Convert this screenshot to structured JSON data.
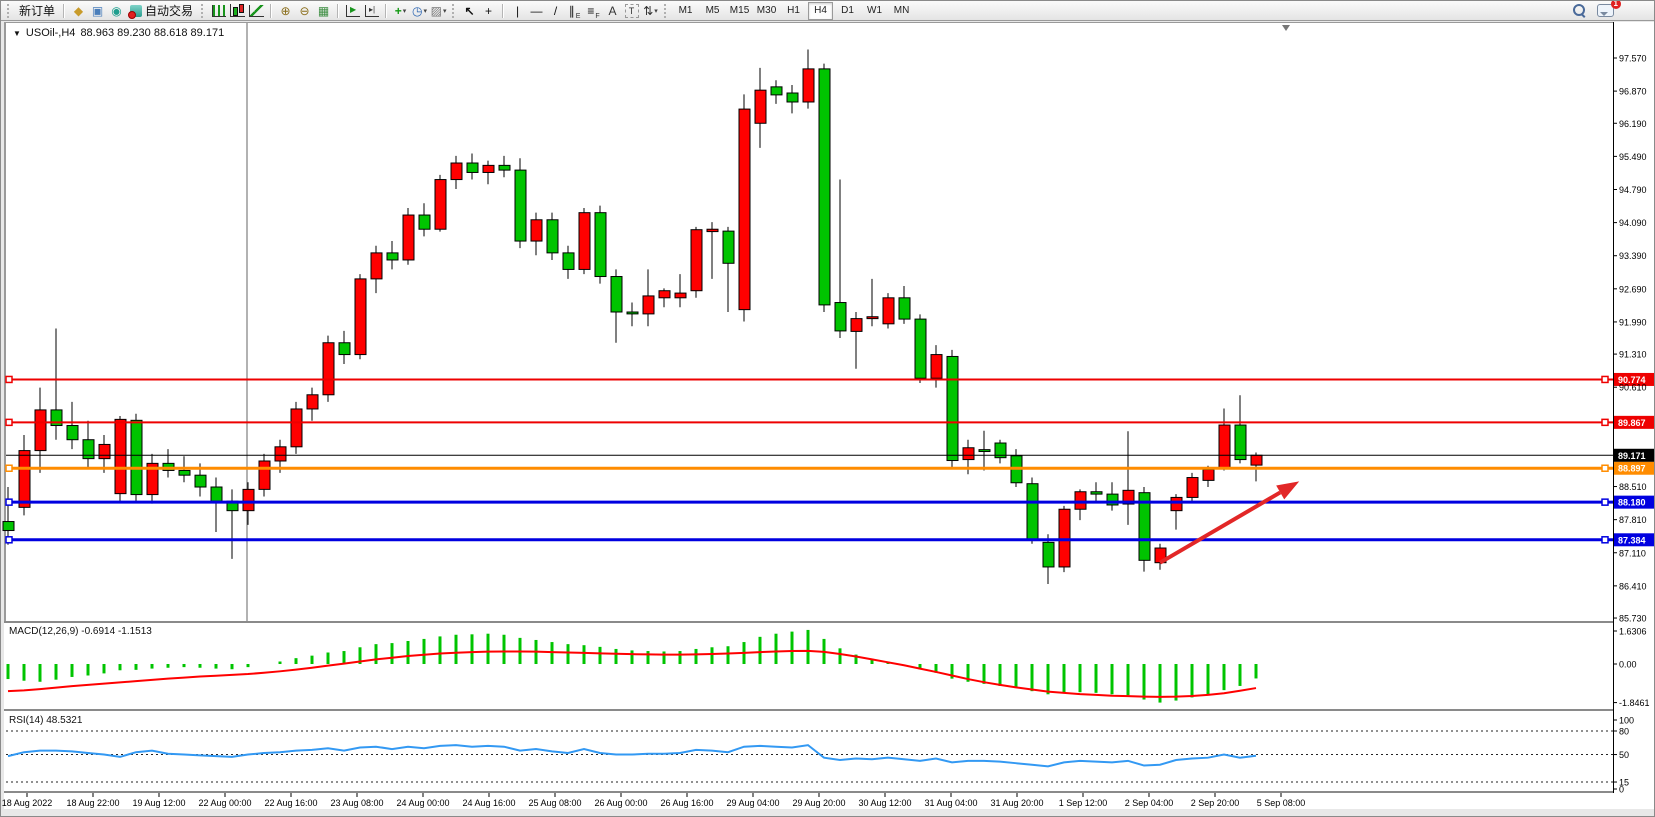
{
  "toolbar": {
    "new_order_label": "新订单",
    "autotrading_label": "自动交易",
    "timeframes": [
      "M1",
      "M5",
      "M15",
      "M30",
      "H1",
      "H4",
      "D1",
      "W1",
      "MN"
    ],
    "active_timeframe": "H4",
    "notification_count": "1",
    "tools": [
      {
        "kind": "grip"
      },
      {
        "kind": "text",
        "name": "new-order-button"
      },
      {
        "kind": "sep"
      },
      {
        "kind": "glyph",
        "name": "market-watch-icon",
        "glyph": "◆",
        "color": "#c89b2a"
      },
      {
        "kind": "glyph",
        "name": "data-window-icon",
        "glyph": "▣",
        "color": "#4a7ebb"
      },
      {
        "kind": "glyph",
        "name": "signals-icon",
        "glyph": "◉",
        "color": "#1f9e8e"
      },
      {
        "kind": "autotrading",
        "name": "autotrading-button"
      },
      {
        "kind": "grip"
      },
      {
        "kind": "css",
        "name": "bar-chart-icon",
        "cls": "ic-bars"
      },
      {
        "kind": "css",
        "name": "candlestick-icon",
        "cls": "ic-candles"
      },
      {
        "kind": "css",
        "name": "line-chart-icon",
        "cls": "ic-line"
      },
      {
        "kind": "sep"
      },
      {
        "kind": "glyph",
        "name": "zoom-in-icon",
        "glyph": "⊕",
        "color": "#8a6d1a"
      },
      {
        "kind": "glyph",
        "name": "zoom-out-icon",
        "glyph": "⊖",
        "color": "#8a6d1a"
      },
      {
        "kind": "glyph",
        "name": "tile-windows-icon",
        "glyph": "▦",
        "color": "#3a8c3f"
      },
      {
        "kind": "sep"
      },
      {
        "kind": "css",
        "name": "auto-scroll-icon",
        "cls": "ic-scroll",
        "glyph": "▶"
      },
      {
        "kind": "css",
        "name": "chart-shift-icon",
        "cls": "ic-shift",
        "glyph": "▸|"
      },
      {
        "kind": "sep"
      },
      {
        "kind": "glyph",
        "name": "add-indicator-icon",
        "glyph": "+",
        "color": "#119a11",
        "bold": 1,
        "caret": 1
      },
      {
        "kind": "glyph",
        "name": "period-icon",
        "glyph": "◷",
        "color": "#2762b0",
        "caret": 1
      },
      {
        "kind": "glyph",
        "name": "template-icon",
        "glyph": "▨",
        "color": "#777",
        "caret": 1
      },
      {
        "kind": "grip"
      },
      {
        "kind": "glyph",
        "name": "cursor-icon",
        "glyph": "↖",
        "color": "#111",
        "bold": 1
      },
      {
        "kind": "glyph",
        "name": "crosshair-icon",
        "glyph": "+",
        "color": "#111"
      },
      {
        "kind": "sep"
      },
      {
        "kind": "glyph",
        "name": "vertical-line-icon",
        "glyph": "|",
        "color": "#111"
      },
      {
        "kind": "glyph",
        "name": "horizontal-line-icon",
        "glyph": "—",
        "color": "#111"
      },
      {
        "kind": "glyph",
        "name": "trendline-icon",
        "glyph": "/",
        "color": "#111"
      },
      {
        "kind": "glyph",
        "name": "channel-icon",
        "glyph": "∥",
        "color": "#111",
        "sub": "E"
      },
      {
        "kind": "glyph",
        "name": "fibonacci-icon",
        "glyph": "≡",
        "color": "#111",
        "sub": "F"
      },
      {
        "kind": "glyph",
        "name": "text-icon",
        "glyph": "A",
        "color": "#333"
      },
      {
        "kind": "css",
        "name": "text-label-icon",
        "cls": "ic-tlabel",
        "glyph": "T"
      },
      {
        "kind": "glyph",
        "name": "arrows-icon",
        "glyph": "⇅",
        "color": "#333",
        "caret": 1
      },
      {
        "kind": "grip"
      }
    ]
  },
  "chart": {
    "title_symbol": "USOil-,H4",
    "title_ohlc": "88.963 89.230 88.618 89.171",
    "collapse_glyph": "▼"
  },
  "chart_data": [
    {
      "type": "candlestick",
      "symbol": "USOil-",
      "timeframe": "H4",
      "current_bar": {
        "open": 88.963,
        "high": 89.23,
        "low": 88.618,
        "close": 89.171
      },
      "ylim": [
        85.73,
        97.57
      ],
      "grid": false,
      "bull_color": "#ff0000",
      "bear_color": "#00c400",
      "note": "Chinese color convention: red = bullish, green = bearish",
      "price_ticks": [
        "97.570",
        "96.870",
        "96.190",
        "95.490",
        "94.790",
        "94.090",
        "93.390",
        "92.690",
        "91.990",
        "91.310",
        "90.610",
        "88.510",
        "87.810",
        "87.110",
        "86.410",
        "85.730"
      ],
      "x_labels": [
        "18 Aug 2022",
        "18 Aug 22:00",
        "19 Aug 12:00",
        "22 Aug 00:00",
        "22 Aug 16:00",
        "23 Aug 08:00",
        "24 Aug 00:00",
        "24 Aug 16:00",
        "25 Aug 08:00",
        "26 Aug 00:00",
        "26 Aug 16:00",
        "29 Aug 04:00",
        "29 Aug 20:00",
        "30 Aug 12:00",
        "31 Aug 04:00",
        "31 Aug 20:00",
        "1 Sep 12:00",
        "2 Sep 04:00",
        "2 Sep 20:00",
        "5 Sep 08:00"
      ],
      "hlines": [
        {
          "price": 90.774,
          "label": "90.774",
          "color": "#ee0000",
          "width": 2
        },
        {
          "price": 89.867,
          "label": "89.867",
          "color": "#ee0000",
          "width": 2
        },
        {
          "price": 88.897,
          "label": "88.897",
          "color": "#ff8c00",
          "width": 3
        },
        {
          "price": 88.18,
          "label": "88.180",
          "color": "#0000e0",
          "width": 3
        },
        {
          "price": 87.384,
          "label": "87.384",
          "color": "#0000e0",
          "width": 3
        }
      ],
      "bid_line": {
        "price": 89.171,
        "label": "89.171",
        "color": "#000000"
      },
      "vline_bar": 15,
      "arrow": {
        "from_bar": 72,
        "from_price": 86.9,
        "to_bar": 80.7,
        "to_price": 88.62,
        "color": "#e22727"
      },
      "candles": [
        [
          87.77,
          88.5,
          87.28,
          87.58
        ],
        [
          88.07,
          89.6,
          87.9,
          89.27
        ],
        [
          89.27,
          90.6,
          88.8,
          90.13
        ],
        [
          90.13,
          91.85,
          89.5,
          89.8
        ],
        [
          89.8,
          90.3,
          89.3,
          89.5
        ],
        [
          89.5,
          89.9,
          88.9,
          89.1
        ],
        [
          89.1,
          89.6,
          88.8,
          89.4
        ],
        [
          88.36,
          90.0,
          88.2,
          89.93
        ],
        [
          89.91,
          90.05,
          88.2,
          88.34
        ],
        [
          88.34,
          89.2,
          88.15,
          89.0
        ],
        [
          89.0,
          89.3,
          88.7,
          88.85
        ],
        [
          88.85,
          89.15,
          88.6,
          88.75
        ],
        [
          88.75,
          89.0,
          88.3,
          88.5
        ],
        [
          88.5,
          88.7,
          87.55,
          88.2
        ],
        [
          88.2,
          88.45,
          86.98,
          88.0
        ],
        [
          88.0,
          88.6,
          87.7,
          88.45
        ],
        [
          88.45,
          89.2,
          88.3,
          89.05
        ],
        [
          89.05,
          89.5,
          88.8,
          89.35
        ],
        [
          89.35,
          90.3,
          89.2,
          90.15
        ],
        [
          90.15,
          90.6,
          89.9,
          90.45
        ],
        [
          90.45,
          91.7,
          90.3,
          91.55
        ],
        [
          91.55,
          91.8,
          91.1,
          91.3
        ],
        [
          91.3,
          93.0,
          91.2,
          92.9
        ],
        [
          92.9,
          93.6,
          92.6,
          93.45
        ],
        [
          93.45,
          93.7,
          93.1,
          93.3
        ],
        [
          93.3,
          94.4,
          93.2,
          94.25
        ],
        [
          94.25,
          94.5,
          93.8,
          93.95
        ],
        [
          93.95,
          95.1,
          93.9,
          95.0
        ],
        [
          95.0,
          95.5,
          94.8,
          95.35
        ],
        [
          95.35,
          95.55,
          95.0,
          95.15
        ],
        [
          95.15,
          95.4,
          94.9,
          95.3
        ],
        [
          95.3,
          95.5,
          95.05,
          95.2
        ],
        [
          95.2,
          95.45,
          93.55,
          93.7
        ],
        [
          93.7,
          94.3,
          93.4,
          94.15
        ],
        [
          94.15,
          94.3,
          93.3,
          93.45
        ],
        [
          93.45,
          93.6,
          92.9,
          93.1
        ],
        [
          93.1,
          94.4,
          93.0,
          94.3
        ],
        [
          94.3,
          94.45,
          92.8,
          92.95
        ],
        [
          92.95,
          93.1,
          91.55,
          92.2
        ],
        [
          92.2,
          92.4,
          91.9,
          92.16
        ],
        [
          92.16,
          93.1,
          91.9,
          92.54
        ],
        [
          92.5,
          92.7,
          92.3,
          92.65
        ],
        [
          92.5,
          93.0,
          92.3,
          92.6
        ],
        [
          92.65,
          94.0,
          92.5,
          93.94
        ],
        [
          93.9,
          94.1,
          92.9,
          93.95
        ],
        [
          93.91,
          94.0,
          92.2,
          93.23
        ],
        [
          92.25,
          96.8,
          92.0,
          96.49
        ],
        [
          96.19,
          97.36,
          95.67,
          96.89
        ],
        [
          96.96,
          97.1,
          96.6,
          96.79
        ],
        [
          96.83,
          97.0,
          96.4,
          96.64
        ],
        [
          96.64,
          97.75,
          96.5,
          97.34
        ],
        [
          97.34,
          97.45,
          92.2,
          92.35
        ],
        [
          92.4,
          95.0,
          91.65,
          91.8
        ],
        [
          91.79,
          92.2,
          91.0,
          92.06
        ],
        [
          92.06,
          92.9,
          91.9,
          92.1
        ],
        [
          91.95,
          92.6,
          91.85,
          92.5
        ],
        [
          92.5,
          92.75,
          91.95,
          92.05
        ],
        [
          92.05,
          92.15,
          90.7,
          90.8
        ],
        [
          90.8,
          91.5,
          90.6,
          91.3
        ],
        [
          91.26,
          91.4,
          88.9,
          89.06
        ],
        [
          89.08,
          89.5,
          88.77,
          89.33
        ],
        [
          89.29,
          89.69,
          88.85,
          89.25
        ],
        [
          89.43,
          89.5,
          89.0,
          89.12
        ],
        [
          89.16,
          89.3,
          88.5,
          88.59
        ],
        [
          88.57,
          88.7,
          87.3,
          87.38
        ],
        [
          87.33,
          87.5,
          86.45,
          86.81
        ],
        [
          86.81,
          88.1,
          86.7,
          88.03
        ],
        [
          88.03,
          88.45,
          87.8,
          88.4
        ],
        [
          88.4,
          88.6,
          88.2,
          88.35
        ],
        [
          88.35,
          88.6,
          88.0,
          88.12
        ],
        [
          88.14,
          89.68,
          87.7,
          88.43
        ],
        [
          88.38,
          88.5,
          86.71,
          86.95
        ],
        [
          86.9,
          87.3,
          86.75,
          87.21
        ],
        [
          88.0,
          88.35,
          87.6,
          88.28
        ],
        [
          88.28,
          88.8,
          88.2,
          88.7
        ],
        [
          88.64,
          88.95,
          88.5,
          88.87
        ],
        [
          88.91,
          90.16,
          88.85,
          89.81
        ],
        [
          89.81,
          90.44,
          89.0,
          89.08
        ],
        [
          88.963,
          89.23,
          88.618,
          89.171
        ]
      ]
    },
    {
      "type": "bar",
      "label": "MACD(12,26,9) -0.6914 -1.1513",
      "name": "MACD(12,26,9)",
      "current_values": [
        -0.6914,
        -1.1513
      ],
      "ticks": [
        "1.6306",
        "0.00",
        "-1.8461"
      ],
      "tick_values": [
        1.6306,
        0.0,
        -1.8461
      ],
      "bar_color": "#00c400",
      "signal_color": "#ff0000",
      "values": [
        -0.72,
        -0.8,
        -0.85,
        -0.75,
        -0.62,
        -0.55,
        -0.45,
        -0.3,
        -0.28,
        -0.22,
        -0.18,
        -0.15,
        -0.18,
        -0.22,
        -0.25,
        -0.15,
        0.0,
        0.12,
        0.28,
        0.4,
        0.55,
        0.62,
        0.8,
        0.95,
        1.0,
        1.1,
        1.2,
        1.32,
        1.4,
        1.42,
        1.45,
        1.4,
        1.25,
        1.15,
        1.05,
        0.95,
        0.9,
        0.82,
        0.72,
        0.65,
        0.62,
        0.6,
        0.62,
        0.72,
        0.8,
        0.85,
        1.05,
        1.3,
        1.45,
        1.55,
        1.63,
        1.2,
        0.75,
        0.45,
        0.25,
        0.12,
        0.0,
        -0.25,
        -0.42,
        -0.7,
        -0.85,
        -0.95,
        -1.05,
        -1.15,
        -1.3,
        -1.45,
        -1.4,
        -1.35,
        -1.38,
        -1.45,
        -1.5,
        -1.7,
        -1.846,
        -1.75,
        -1.6,
        -1.45,
        -1.25,
        -1.05,
        -0.6914
      ],
      "signal": [
        -1.3,
        -1.26,
        -1.2,
        -1.13,
        -1.06,
        -1.0,
        -0.94,
        -0.88,
        -0.82,
        -0.76,
        -0.7,
        -0.65,
        -0.6,
        -0.56,
        -0.52,
        -0.48,
        -0.42,
        -0.35,
        -0.27,
        -0.18,
        -0.08,
        0.02,
        0.12,
        0.22,
        0.3,
        0.38,
        0.44,
        0.5,
        0.54,
        0.57,
        0.59,
        0.6,
        0.6,
        0.59,
        0.57,
        0.55,
        0.53,
        0.51,
        0.49,
        0.47,
        0.46,
        0.45,
        0.45,
        0.46,
        0.48,
        0.5,
        0.53,
        0.57,
        0.6,
        0.62,
        0.63,
        0.58,
        0.48,
        0.36,
        0.22,
        0.08,
        -0.06,
        -0.22,
        -0.38,
        -0.55,
        -0.72,
        -0.87,
        -1.0,
        -1.12,
        -1.22,
        -1.32,
        -1.38,
        -1.44,
        -1.48,
        -1.52,
        -1.54,
        -1.56,
        -1.57,
        -1.56,
        -1.53,
        -1.48,
        -1.4,
        -1.28,
        -1.1513
      ]
    },
    {
      "type": "line",
      "label": "RSI(14) 48.5321",
      "name": "RSI(14)",
      "current_value": 48.5321,
      "ticks": [
        "100",
        "80",
        "50",
        "15",
        "0"
      ],
      "tick_values": [
        100,
        80,
        50,
        15,
        0
      ],
      "levels": [
        80,
        50,
        15
      ],
      "line_color": "#3399f3",
      "values": [
        48,
        53,
        55,
        55,
        54,
        52,
        50,
        47,
        53,
        55,
        51,
        50,
        49,
        48,
        47,
        50,
        52,
        53,
        55,
        56,
        58,
        55,
        59,
        60,
        57,
        60,
        58,
        61,
        62,
        60,
        61,
        60,
        55,
        57,
        54,
        52,
        57,
        52,
        50,
        50,
        51,
        51,
        52,
        56,
        55,
        53,
        60,
        61,
        60,
        59,
        62,
        46,
        43,
        45,
        44,
        46,
        44,
        42,
        45,
        40,
        42,
        42,
        41,
        39,
        37,
        35,
        40,
        42,
        41,
        40,
        42,
        36,
        37,
        43,
        45,
        46,
        50,
        46,
        48.5
      ]
    }
  ]
}
